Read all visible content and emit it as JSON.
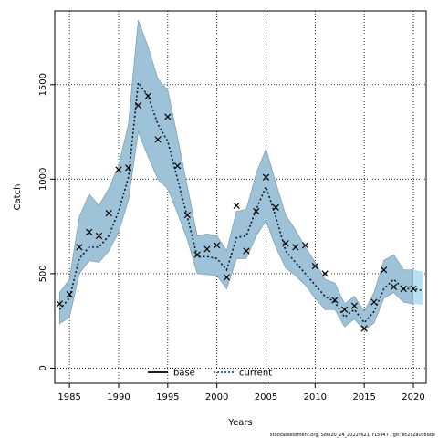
{
  "chart_data": {
    "type": "line",
    "xlabel": "Years",
    "ylabel": "Catch",
    "xlim": [
      1983.5,
      2021.3
    ],
    "ylim": [
      -80,
      1890
    ],
    "xticks": [
      1985,
      1990,
      1995,
      2000,
      2005,
      2010,
      2015,
      2020
    ],
    "yticks": [
      0,
      500,
      1000,
      1500
    ],
    "grid": true,
    "legend_position": "bottom-center",
    "legend": [
      {
        "label": "base",
        "style": "solid",
        "color": "#000000"
      },
      {
        "label": "current",
        "style": "dotted",
        "color": "#1f5a8a"
      }
    ],
    "footnote": "stockassessment.org, Sole20_24_2022vs21, r15947 , git: ec2c2a0c6dde",
    "series": [
      {
        "name": "current",
        "x": [
          1984,
          1985,
          1986,
          1987,
          1988,
          1989,
          1990,
          1991,
          1992,
          1993,
          1994,
          1995,
          1996,
          1997,
          1998,
          1999,
          2000,
          2001,
          2002,
          2003,
          2004,
          2005,
          2006,
          2007,
          2008,
          2009,
          2010,
          2011,
          2012,
          2013,
          2014,
          2015,
          2016,
          2017,
          2018,
          2019,
          2020,
          2021
        ],
        "y": [
          310,
          370,
          580,
          640,
          640,
          700,
          830,
          1010,
          1510,
          1440,
          1290,
          1200,
          1000,
          800,
          590,
          590,
          580,
          520,
          690,
          700,
          840,
          960,
          800,
          620,
          560,
          500,
          440,
          380,
          350,
          270,
          310,
          240,
          300,
          420,
          470,
          420,
          420,
          410
        ],
        "lower": [
          235,
          270,
          500,
          570,
          560,
          620,
          720,
          890,
          1250,
          1120,
          1000,
          950,
          820,
          680,
          500,
          495,
          490,
          420,
          580,
          580,
          700,
          780,
          640,
          530,
          490,
          440,
          370,
          310,
          310,
          220,
          260,
          200,
          240,
          370,
          400,
          350,
          340,
          335
        ],
        "upper": [
          400,
          470,
          800,
          920,
          860,
          950,
          1070,
          1290,
          1840,
          1700,
          1530,
          1470,
          1220,
          960,
          700,
          710,
          700,
          620,
          830,
          840,
          1030,
          1160,
          980,
          810,
          730,
          640,
          560,
          470,
          450,
          340,
          380,
          300,
          400,
          570,
          600,
          520,
          520,
          510
        ]
      }
    ],
    "observations": {
      "name": "observed",
      "x": [
        1984,
        1985,
        1986,
        1987,
        1988,
        1989,
        1990,
        1991,
        1992,
        1993,
        1994,
        1995,
        1996,
        1997,
        1998,
        1999,
        2000,
        2001,
        2002,
        2003,
        2004,
        2005,
        2006,
        2007,
        2008,
        2009,
        2010,
        2011,
        2012,
        2013,
        2014,
        2015,
        2016,
        2017,
        2018,
        2019,
        2020
      ],
      "y": [
        340,
        390,
        640,
        720,
        700,
        820,
        1050,
        1060,
        1390,
        1440,
        1210,
        1330,
        1070,
        810,
        600,
        630,
        650,
        480,
        860,
        620,
        830,
        1010,
        850,
        660,
        640,
        650,
        540,
        500,
        360,
        310,
        330,
        210,
        350,
        520,
        430,
        420,
        420
      ]
    },
    "band_color": "#9ec3d8",
    "band_edge_color": "#7fa0b4",
    "forecast_band_color": "#b6e1f2"
  }
}
